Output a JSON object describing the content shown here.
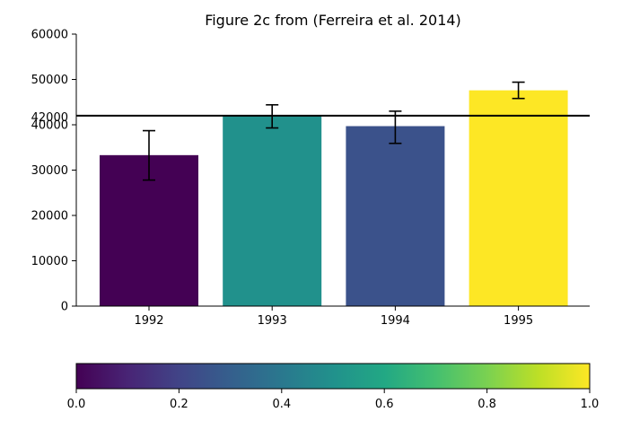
{
  "chart_data": {
    "type": "bar",
    "title": "Figure 2c from (Ferreira et al. 2014)",
    "xlabel": "",
    "ylabel": "",
    "categories": [
      "1992",
      "1993",
      "1994",
      "1995"
    ],
    "values": [
      33300,
      42000,
      39700,
      47600
    ],
    "error_low": [
      27800,
      39300,
      35900,
      45800
    ],
    "error_high": [
      38700,
      44400,
      43000,
      49400
    ],
    "bar_colors": [
      "#440154",
      "#21918c",
      "#3b528b",
      "#fde725"
    ],
    "reference_line": {
      "value": 42000,
      "label": "42000",
      "color": "#000000"
    },
    "ylim": [
      0,
      60000
    ],
    "yticks": [
      "0",
      "10000",
      "20000",
      "30000",
      "40000",
      "50000",
      "60000"
    ],
    "grid": false,
    "colorbar": {
      "colormap": "viridis",
      "range": [
        0.0,
        1.0
      ],
      "ticks": [
        "0.0",
        "0.2",
        "0.4",
        "0.6",
        "0.8",
        "1.0"
      ],
      "orientation": "horizontal"
    }
  }
}
